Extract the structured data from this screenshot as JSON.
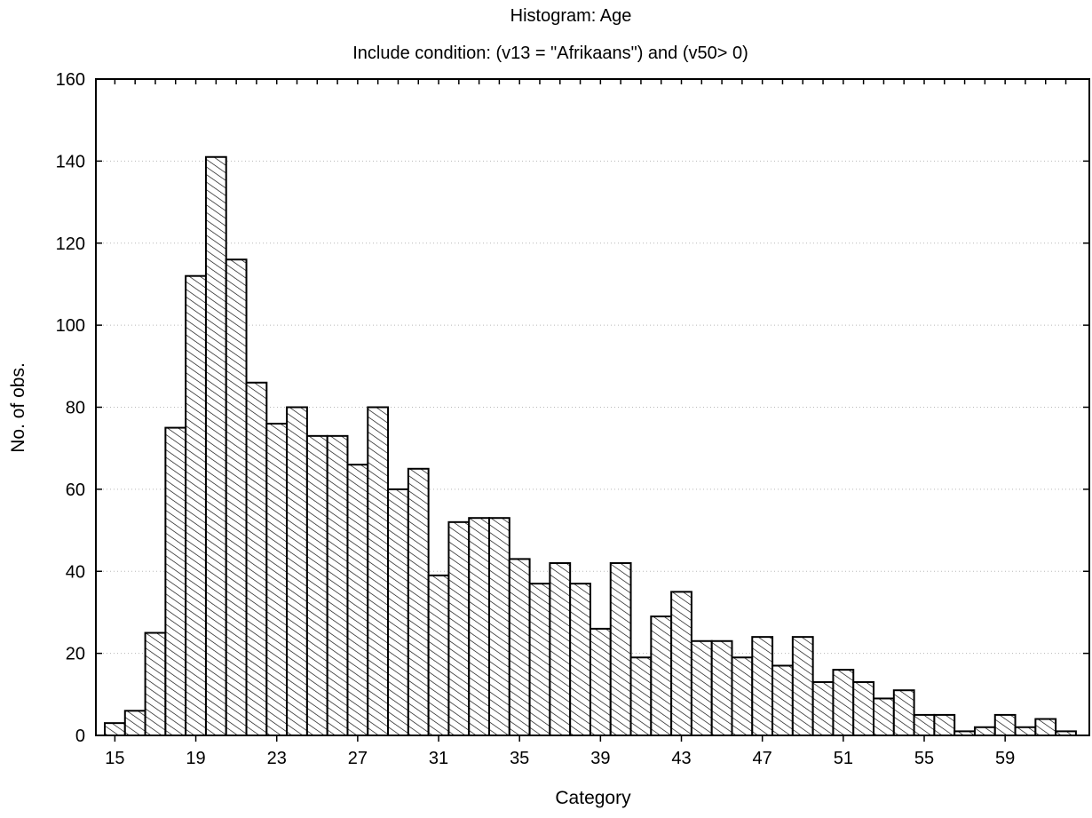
{
  "chart_data": {
    "type": "bar",
    "title": "Histogram: Age",
    "subtitle": "Include condition: (v13 = \"Afrikaans\")  and (v50> 0)",
    "xlabel": "Category",
    "ylabel": "No. of obs.",
    "categories": [
      15,
      16,
      17,
      18,
      19,
      20,
      21,
      22,
      23,
      24,
      25,
      26,
      27,
      28,
      29,
      30,
      31,
      32,
      33,
      34,
      35,
      36,
      37,
      38,
      39,
      40,
      41,
      42,
      43,
      44,
      45,
      46,
      47,
      48,
      49,
      50,
      51,
      52,
      53,
      54,
      55,
      56,
      57,
      58,
      59,
      60,
      61,
      62
    ],
    "values": [
      3,
      6,
      25,
      75,
      112,
      141,
      116,
      86,
      76,
      80,
      73,
      73,
      66,
      80,
      60,
      65,
      39,
      52,
      53,
      53,
      43,
      37,
      42,
      37,
      26,
      42,
      19,
      29,
      35,
      23,
      23,
      19,
      24,
      17,
      24,
      13,
      16,
      13,
      9,
      11,
      5,
      5,
      1,
      2,
      5,
      2,
      4,
      1
    ],
    "x_tick_labels": [
      "15",
      "19",
      "23",
      "27",
      "31",
      "35",
      "39",
      "43",
      "47",
      "51",
      "55",
      "59"
    ],
    "y_tick_labels": [
      "0",
      "20",
      "40",
      "60",
      "80",
      "100",
      "120",
      "140",
      "160"
    ],
    "ylim": [
      0,
      160
    ],
    "grid": true,
    "bar_pattern": "diagonal-hatch",
    "bar_color": "#000000"
  }
}
